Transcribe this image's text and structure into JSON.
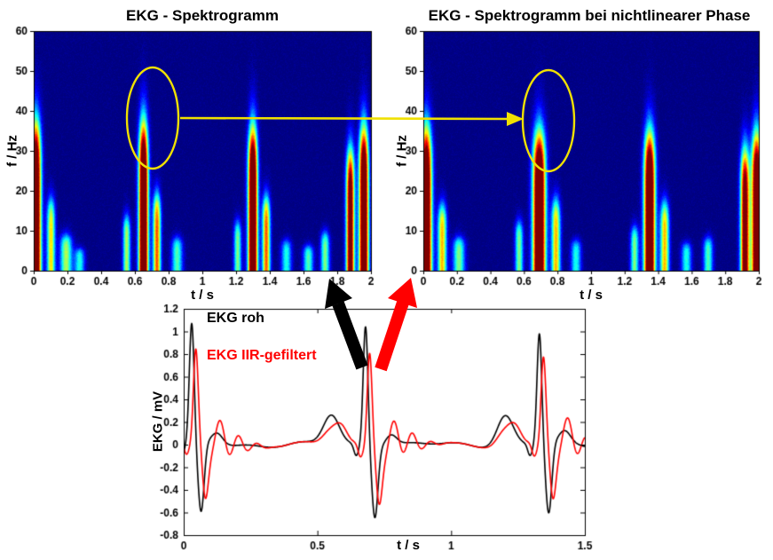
{
  "colors": {
    "highlight": "#f0e000",
    "arrow_black": "#000000",
    "arrow_red": "#ff0000",
    "axis": "#000000",
    "spectrogram_background": "#000080",
    "raw_line": "#000000",
    "filtered_line": "#ff0000"
  },
  "chart_data": [
    {
      "id": "spectrogram_left",
      "type": "heatmap",
      "title": "EKG - Spektrogramm",
      "xlabel": "t / s",
      "ylabel": "f / Hz",
      "xlim": [
        0,
        2
      ],
      "ylim": [
        0,
        60
      ],
      "xticks": [
        0,
        0.2,
        0.4,
        0.6,
        0.8,
        1,
        1.2,
        1.4,
        1.6,
        1.8,
        2
      ],
      "xtick_labels": [
        "0",
        "0.2",
        "0.4",
        "0.6",
        "0.8",
        "1",
        "1.2",
        "1.4",
        "1.6",
        "1.8",
        "2"
      ],
      "yticks": [
        0,
        10,
        20,
        30,
        40,
        50,
        60
      ],
      "ytick_labels": [
        "0",
        "10",
        "20",
        "30",
        "40",
        "50",
        "60"
      ],
      "colormap": "jet",
      "bursts": [
        {
          "t": 0.01,
          "fmax": 54,
          "amp": 1.35,
          "width": 0.03
        },
        {
          "t": 0.1,
          "fmax": 26,
          "amp": 0.65,
          "width": 0.024
        },
        {
          "t": 0.19,
          "fmax": 13,
          "amp": 0.55,
          "width": 0.035
        },
        {
          "t": 0.27,
          "fmax": 8,
          "amp": 0.4,
          "width": 0.03
        },
        {
          "t": 0.55,
          "fmax": 20,
          "amp": 0.55,
          "width": 0.022
        },
        {
          "t": 0.65,
          "fmax": 54,
          "amp": 1.4,
          "width": 0.027
        },
        {
          "t": 0.73,
          "fmax": 28,
          "amp": 0.8,
          "width": 0.023
        },
        {
          "t": 0.85,
          "fmax": 12,
          "amp": 0.45,
          "width": 0.032
        },
        {
          "t": 1.21,
          "fmax": 18,
          "amp": 0.5,
          "width": 0.022
        },
        {
          "t": 1.3,
          "fmax": 52,
          "amp": 1.4,
          "width": 0.027
        },
        {
          "t": 1.38,
          "fmax": 27,
          "amp": 0.8,
          "width": 0.023
        },
        {
          "t": 1.5,
          "fmax": 11,
          "amp": 0.4,
          "width": 0.03
        },
        {
          "t": 1.63,
          "fmax": 9,
          "amp": 0.45,
          "width": 0.03
        },
        {
          "t": 1.73,
          "fmax": 14,
          "amp": 0.5,
          "width": 0.026
        },
        {
          "t": 1.88,
          "fmax": 44,
          "amp": 1.15,
          "width": 0.024
        },
        {
          "t": 1.96,
          "fmax": 52,
          "amp": 1.35,
          "width": 0.027
        }
      ]
    },
    {
      "id": "spectrogram_right",
      "type": "heatmap",
      "title": "EKG - Spektrogramm  bei nichtlinearer Phase",
      "xlabel": "t / s",
      "ylabel": "f / Hz",
      "xlim": [
        0,
        2
      ],
      "ylim": [
        0,
        60
      ],
      "xticks": [
        0,
        0.2,
        0.4,
        0.6,
        0.8,
        1,
        1.2,
        1.4,
        1.6,
        1.8,
        2
      ],
      "xtick_labels": [
        "0",
        "0.2",
        "0.4",
        "0.6",
        "0.8",
        "1",
        "1.2",
        "1.4",
        "1.6",
        "1.8",
        "2"
      ],
      "yticks": [
        0,
        10,
        20,
        30,
        40,
        50,
        60
      ],
      "ytick_labels": [
        "0",
        "10",
        "20",
        "30",
        "40",
        "50",
        "60"
      ],
      "colormap": "jet",
      "bursts": [
        {
          "t": 0.015,
          "fmax": 52,
          "amp": 1.35,
          "width": 0.032
        },
        {
          "t": 0.11,
          "fmax": 24,
          "amp": 0.7,
          "width": 0.026
        },
        {
          "t": 0.21,
          "fmax": 12,
          "amp": 0.5,
          "width": 0.035
        },
        {
          "t": 0.57,
          "fmax": 18,
          "amp": 0.5,
          "width": 0.024
        },
        {
          "t": 0.69,
          "fmax": 50,
          "amp": 1.45,
          "width": 0.036
        },
        {
          "t": 0.79,
          "fmax": 26,
          "amp": 0.7,
          "width": 0.026
        },
        {
          "t": 0.91,
          "fmax": 11,
          "amp": 0.4,
          "width": 0.03
        },
        {
          "t": 1.26,
          "fmax": 16,
          "amp": 0.5,
          "width": 0.024
        },
        {
          "t": 1.35,
          "fmax": 50,
          "amp": 1.4,
          "width": 0.032
        },
        {
          "t": 1.44,
          "fmax": 25,
          "amp": 0.7,
          "width": 0.026
        },
        {
          "t": 1.57,
          "fmax": 10,
          "amp": 0.4,
          "width": 0.03
        },
        {
          "t": 1.7,
          "fmax": 12,
          "amp": 0.45,
          "width": 0.028
        },
        {
          "t": 1.92,
          "fmax": 44,
          "amp": 1.15,
          "width": 0.026
        },
        {
          "t": 1.99,
          "fmax": 50,
          "amp": 1.3,
          "width": 0.03
        }
      ]
    },
    {
      "id": "ecg_time_series",
      "type": "line",
      "title": "",
      "xlabel": "t / s",
      "ylabel": "EKG / mV",
      "xlim": [
        0,
        1.5
      ],
      "ylim": [
        -0.8,
        1.2
      ],
      "xticks": [
        0,
        0.5,
        1,
        1.5
      ],
      "xtick_labels": [
        "0",
        "0.5",
        "1",
        "1.5"
      ],
      "yticks": [
        -0.8,
        -0.6,
        -0.4,
        -0.2,
        0,
        0.2,
        0.4,
        0.6,
        0.8,
        1,
        1.2
      ],
      "ytick_labels": [
        "-0.8",
        "-0.6",
        "-0.4",
        "-0.2",
        "0",
        "0.2",
        "0.4",
        "0.6",
        "0.8",
        "1",
        "1.2"
      ],
      "series": [
        {
          "name": "EKG roh",
          "color": "#000000",
          "beat_times": [
            0.03,
            0.68,
            1.33
          ],
          "r_peaks": [
            1.05,
            1.06,
            0.98
          ],
          "p_amp": 0.26,
          "s_dip": -0.62,
          "ringing_amp": 0,
          "ringing_freq": 0
        },
        {
          "name": "EKG IIR-gefiltert",
          "color": "#ff0000",
          "beat_times": [
            0.045,
            0.695,
            1.345
          ],
          "r_peaks": [
            0.82,
            0.83,
            0.77
          ],
          "p_amp": 0.22,
          "s_dip": -0.5,
          "ringing_amp": 0.12,
          "ringing_freq": 14
        }
      ]
    }
  ]
}
